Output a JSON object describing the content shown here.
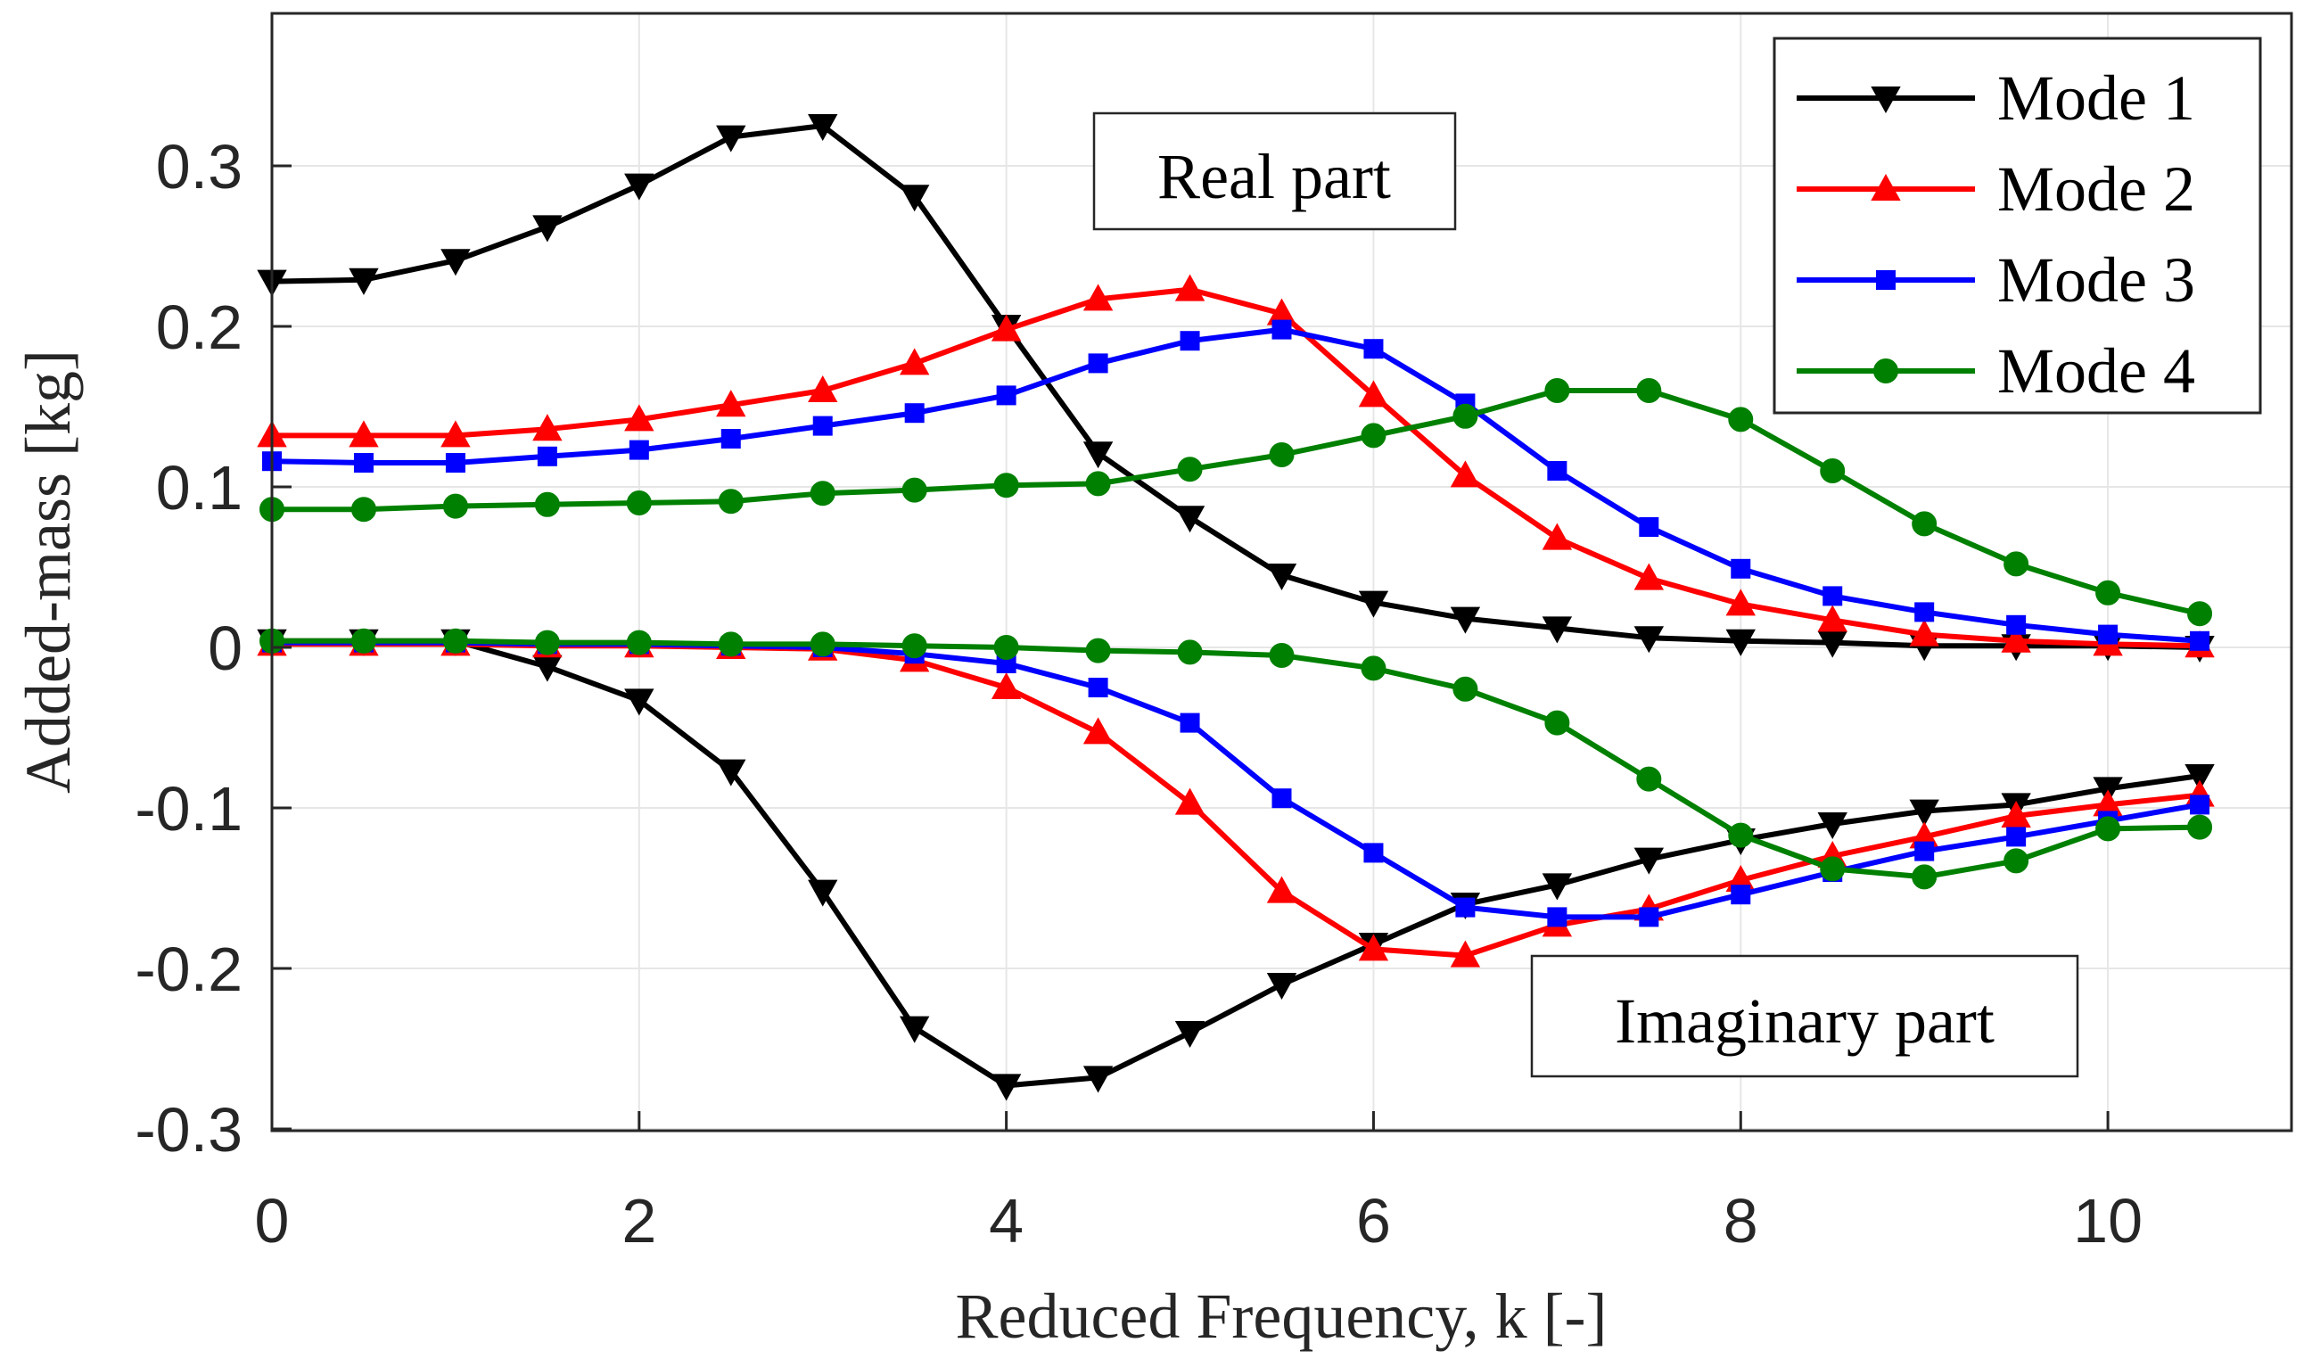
{
  "chart_data": {
    "type": "line",
    "title": "",
    "xlabel": "Reduced Frequency, k [-]",
    "ylabel": "Added-mass [kg]",
    "xlim": [
      0,
      11
    ],
    "ylim": [
      -0.3,
      0.4
    ],
    "xticks": [
      0,
      2,
      4,
      6,
      8,
      10
    ],
    "yticks": [
      -0.3,
      -0.2,
      -0.1,
      0,
      0.1,
      0.2,
      0.3
    ],
    "xtick_labels": [
      "0",
      "2",
      "4",
      "6",
      "8",
      "10"
    ],
    "ytick_labels": [
      "-0.3",
      "-0.2",
      "-0.1",
      "0",
      "0.1",
      "0.2",
      "0.3"
    ],
    "grid": true,
    "legend_position": "top-right",
    "x": [
      0,
      0.5,
      1,
      1.5,
      2,
      2.5,
      3,
      3.5,
      4,
      4.5,
      5,
      5.5,
      6,
      6.5,
      7,
      7.5,
      8,
      8.5,
      9,
      9.5,
      10,
      10.5
    ],
    "series": [
      {
        "name": "Mode 1",
        "color": "#000000",
        "marker": "triangle-down",
        "real": [
          0.228,
          0.229,
          0.241,
          0.262,
          0.288,
          0.318,
          0.325,
          0.281,
          0.2,
          0.121,
          0.081,
          0.045,
          0.028,
          0.018,
          0.012,
          0.006,
          0.004,
          0.003,
          0.001,
          0.001,
          0.001,
          0.0
        ],
        "imag": [
          0.004,
          0.004,
          0.004,
          -0.012,
          -0.033,
          -0.077,
          -0.152,
          -0.237,
          -0.273,
          -0.268,
          -0.24,
          -0.21,
          -0.185,
          -0.16,
          -0.148,
          -0.132,
          -0.12,
          -0.11,
          -0.102,
          -0.098,
          -0.088,
          -0.08
        ]
      },
      {
        "name": "Mode 2",
        "color": "#ff0000",
        "marker": "triangle-up",
        "real": [
          0.132,
          0.132,
          0.132,
          0.136,
          0.142,
          0.151,
          0.16,
          0.177,
          0.198,
          0.217,
          0.223,
          0.208,
          0.157,
          0.107,
          0.068,
          0.043,
          0.027,
          0.017,
          0.008,
          0.004,
          0.002,
          0.001
        ],
        "imag": [
          0.002,
          0.002,
          0.002,
          0.001,
          0.001,
          0.0,
          -0.001,
          -0.008,
          -0.025,
          -0.053,
          -0.097,
          -0.152,
          -0.188,
          -0.192,
          -0.173,
          -0.163,
          -0.145,
          -0.13,
          -0.118,
          -0.105,
          -0.098,
          -0.092
        ]
      },
      {
        "name": "Mode 3",
        "color": "#0000ff",
        "marker": "square",
        "real": [
          0.116,
          0.115,
          0.115,
          0.119,
          0.123,
          0.13,
          0.138,
          0.146,
          0.157,
          0.177,
          0.191,
          0.198,
          0.186,
          0.152,
          0.11,
          0.075,
          0.049,
          0.032,
          0.022,
          0.014,
          0.008,
          0.004
        ],
        "imag": [
          0.003,
          0.003,
          0.003,
          0.002,
          0.002,
          0.001,
          0.0,
          -0.004,
          -0.01,
          -0.025,
          -0.047,
          -0.094,
          -0.128,
          -0.162,
          -0.168,
          -0.168,
          -0.154,
          -0.14,
          -0.127,
          -0.118,
          -0.108,
          -0.098
        ]
      },
      {
        "name": "Mode 4",
        "color": "#008000",
        "marker": "circle",
        "real": [
          0.086,
          0.086,
          0.088,
          0.089,
          0.09,
          0.091,
          0.096,
          0.098,
          0.101,
          0.102,
          0.111,
          0.12,
          0.132,
          0.144,
          0.16,
          0.16,
          0.142,
          0.11,
          0.077,
          0.052,
          0.034,
          0.021
        ],
        "imag": [
          0.004,
          0.004,
          0.004,
          0.003,
          0.003,
          0.002,
          0.002,
          0.001,
          0.0,
          -0.002,
          -0.003,
          -0.005,
          -0.013,
          -0.026,
          -0.047,
          -0.082,
          -0.117,
          -0.138,
          -0.143,
          -0.133,
          -0.113,
          -0.112
        ]
      }
    ],
    "annotations": [
      {
        "text": "Real part"
      },
      {
        "text": "Imaginary part"
      }
    ]
  }
}
